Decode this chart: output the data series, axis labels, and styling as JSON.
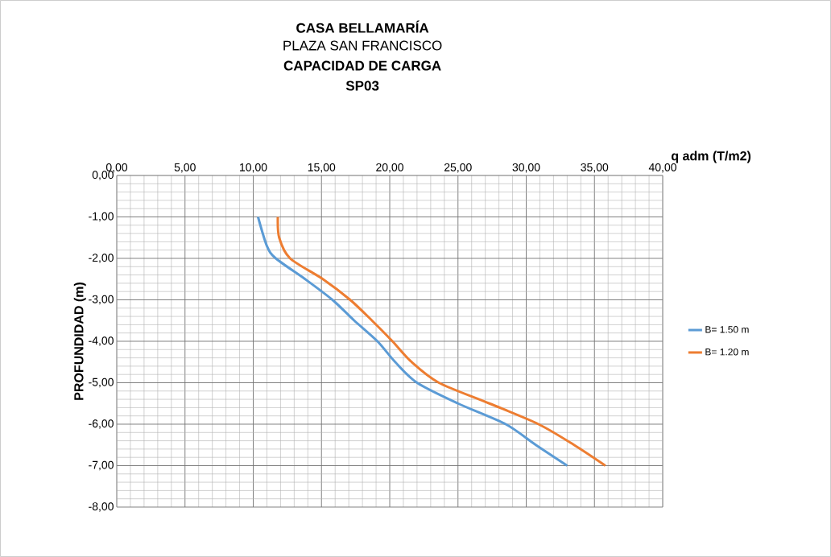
{
  "chart_data": {
    "type": "line",
    "title": "CASA BELLAMARÍA",
    "subtitle": "PLAZA SAN FRANCISCO",
    "annotations": [
      "CAPACIDAD DE CARGA",
      "SP03"
    ],
    "xlabel": "q adm (T/m2)",
    "ylabel": "PROFUNDIDAD (m)",
    "xlim": [
      0,
      40
    ],
    "ylim": [
      -8,
      0
    ],
    "xticks": [
      {
        "value": 0,
        "label": "0,00"
      },
      {
        "value": 5,
        "label": "5,00"
      },
      {
        "value": 10,
        "label": "10,00"
      },
      {
        "value": 15,
        "label": "15,00"
      },
      {
        "value": 20,
        "label": "20,00"
      },
      {
        "value": 25,
        "label": "25,00"
      },
      {
        "value": 30,
        "label": "30,00"
      },
      {
        "value": 35,
        "label": "35,00"
      },
      {
        "value": 40,
        "label": "40,00"
      }
    ],
    "yticks": [
      {
        "value": 0,
        "label": "0,00"
      },
      {
        "value": -1,
        "label": "-1,00"
      },
      {
        "value": -2,
        "label": "-2,00"
      },
      {
        "value": -3,
        "label": "-3,00"
      },
      {
        "value": -4,
        "label": "-4,00"
      },
      {
        "value": -5,
        "label": "-5,00"
      },
      {
        "value": -6,
        "label": "-6,00"
      },
      {
        "value": -7,
        "label": "-7,00"
      },
      {
        "value": -8,
        "label": "-8,00"
      }
    ],
    "grid": true,
    "legend": "right",
    "marker": "none",
    "series": [
      {
        "name": "B= 1.50 m",
        "color": "#5b9bd5",
        "x": [
          10.35,
          11.0,
          11.65,
          13.8,
          15.8,
          17.4,
          19.1,
          20.4,
          22.0,
          25.0,
          28.5,
          30.7,
          33.0
        ],
        "values": [
          -1,
          -1.7,
          -2,
          -2.5,
          -3,
          -3.5,
          -4,
          -4.5,
          -5,
          -5.5,
          -6,
          -6.5,
          -7
        ]
      },
      {
        "name": "B= 1.20 m",
        "color": "#ed7d31",
        "x": [
          11.8,
          11.9,
          12.7,
          15.1,
          17.1,
          18.7,
          20.2,
          21.6,
          23.6,
          27.3,
          30.9,
          33.5,
          35.8
        ],
        "values": [
          -1,
          -1.5,
          -2,
          -2.5,
          -3,
          -3.5,
          -4,
          -4.5,
          -5,
          -5.5,
          -6,
          -6.5,
          -7
        ]
      }
    ]
  }
}
